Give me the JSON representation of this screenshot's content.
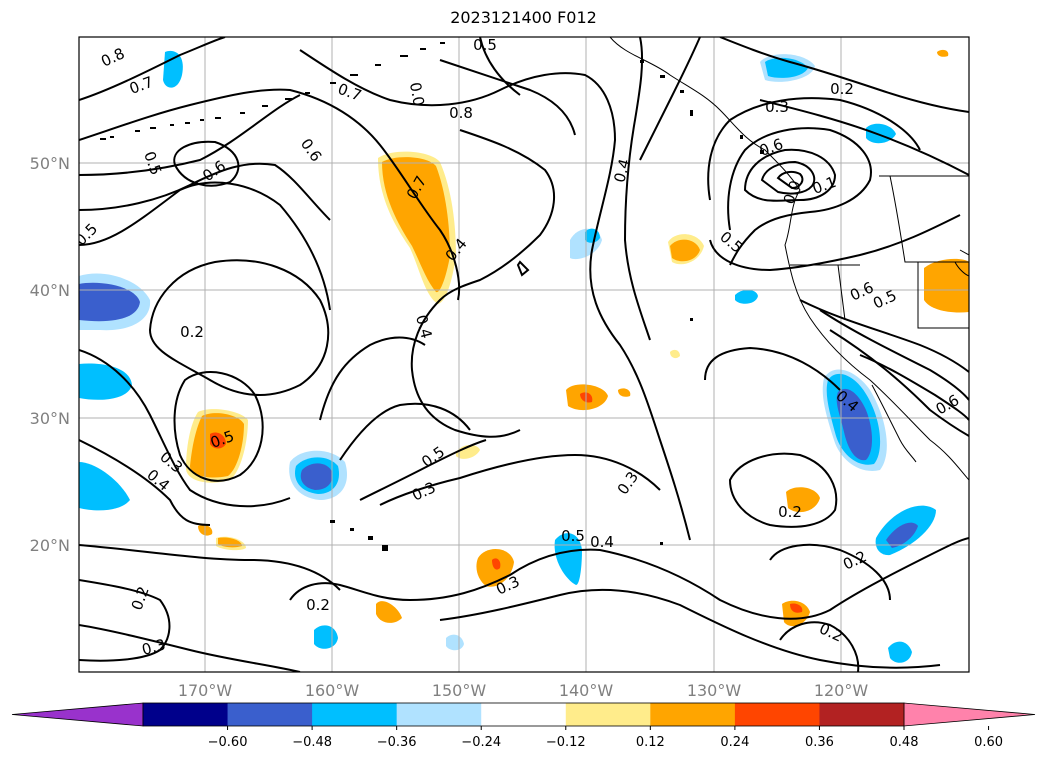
{
  "title": "2023121400 F012",
  "map": {
    "lat_labels": [
      "50°N",
      "40°N",
      "30°N",
      "20°N"
    ],
    "lon_labels": [
      "170°W",
      "160°W",
      "150°W",
      "140°W",
      "130°W",
      "120°W"
    ],
    "contour_labels": [
      {
        "text": "0.8"
      },
      {
        "text": "0.7"
      },
      {
        "text": "0.5"
      },
      {
        "text": "0.6"
      },
      {
        "text": "0.5"
      },
      {
        "text": "0.2"
      },
      {
        "text": "0.5"
      },
      {
        "text": "0.3"
      },
      {
        "text": "0.4"
      },
      {
        "text": "0.2"
      },
      {
        "text": "0.3"
      },
      {
        "text": "0.2"
      },
      {
        "text": "0.6"
      },
      {
        "text": "0.7"
      },
      {
        "text": "0.8"
      },
      {
        "text": "0.5"
      },
      {
        "text": "0.0"
      },
      {
        "text": "0.7"
      },
      {
        "text": "0.4"
      },
      {
        "text": "0.4"
      },
      {
        "text": "0.5"
      },
      {
        "text": "0.3"
      },
      {
        "text": "0.3"
      },
      {
        "text": "0.3"
      },
      {
        "text": "0.5"
      },
      {
        "text": "0.4"
      },
      {
        "text": "0.4"
      },
      {
        "text": "0.3"
      },
      {
        "text": "0.2"
      },
      {
        "text": "0.6"
      },
      {
        "text": "0.1"
      },
      {
        "text": "0.0"
      },
      {
        "text": "0.5"
      },
      {
        "text": "0.6"
      },
      {
        "text": "0.5"
      },
      {
        "text": "0.4"
      },
      {
        "text": "0.6"
      },
      {
        "text": "0.2"
      },
      {
        "text": "0.2"
      },
      {
        "text": "0.2"
      }
    ]
  },
  "colorbar": {
    "ticks": [
      "−0.60",
      "−0.48",
      "−0.36",
      "−0.24",
      "−0.12",
      "0.12",
      "0.24",
      "0.36",
      "0.48",
      "0.60"
    ],
    "colors": [
      "#9932cc",
      "#00008b",
      "#3a5fcd",
      "#00bfff",
      "#b0e2ff",
      "#ffffff",
      "#ffec8b",
      "#ffa500",
      "#ff4500",
      "#b22222",
      "#ff82ab"
    ]
  }
}
